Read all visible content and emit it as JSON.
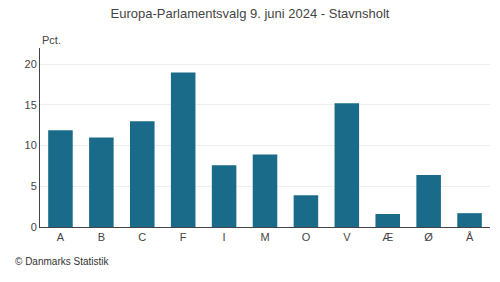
{
  "chart_data": {
    "type": "bar",
    "title": "Europa-Parlamentsvalg 9. juni 2024 - Stavnsholt",
    "categories": [
      "A",
      "B",
      "C",
      "F",
      "I",
      "M",
      "O",
      "V",
      "Æ",
      "Ø",
      "Å"
    ],
    "values": [
      11.9,
      11.0,
      13.0,
      19.0,
      7.6,
      8.9,
      3.9,
      15.2,
      1.6,
      6.4,
      1.7
    ],
    "color": "#1a6b8a",
    "ylabel": "Pct.",
    "footer": "© Danmarks Statistik",
    "ylim": [
      0,
      22
    ],
    "yticks": [
      0,
      5,
      10,
      15,
      20
    ],
    "grid": true
  }
}
